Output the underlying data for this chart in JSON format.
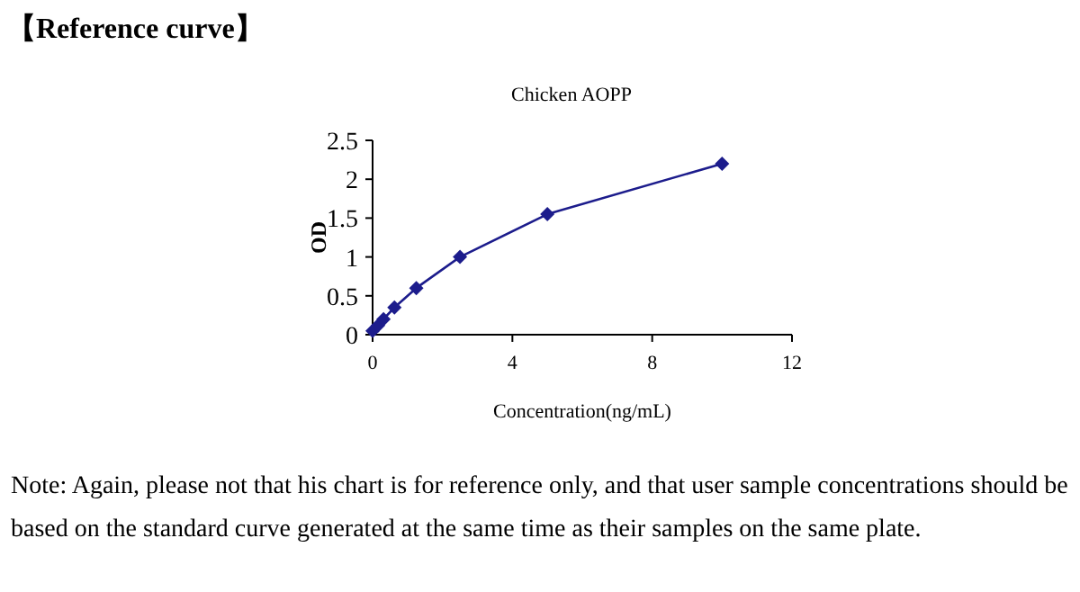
{
  "chart_data": {
    "type": "line",
    "title": "【Reference curve】",
    "subtitle": "Chicken AOPP",
    "xlabel": "Concentration(ng/mL)",
    "ylabel": "OD",
    "x": [
      0,
      0.156,
      0.3125,
      0.625,
      1.25,
      2.5,
      5,
      10
    ],
    "series": [
      {
        "color": "#1c1c8c",
        "values": [
          0.05,
          0.12,
          0.2,
          0.35,
          0.6,
          1.0,
          1.55,
          2.2
        ]
      }
    ],
    "xlim": [
      0,
      12
    ],
    "xticks": [
      0,
      4,
      8,
      12
    ],
    "ylim": [
      0,
      2.5
    ],
    "yticks": [
      0,
      0.5,
      1,
      1.5,
      2,
      2.5
    ],
    "marker": "diamond",
    "line_style": "solid",
    "annotations": [
      "Note: Again, please not that his chart is for reference only, and that user sample concentrations should be based on the standard curve generated at the same time as their samples on the same plate."
    ]
  }
}
